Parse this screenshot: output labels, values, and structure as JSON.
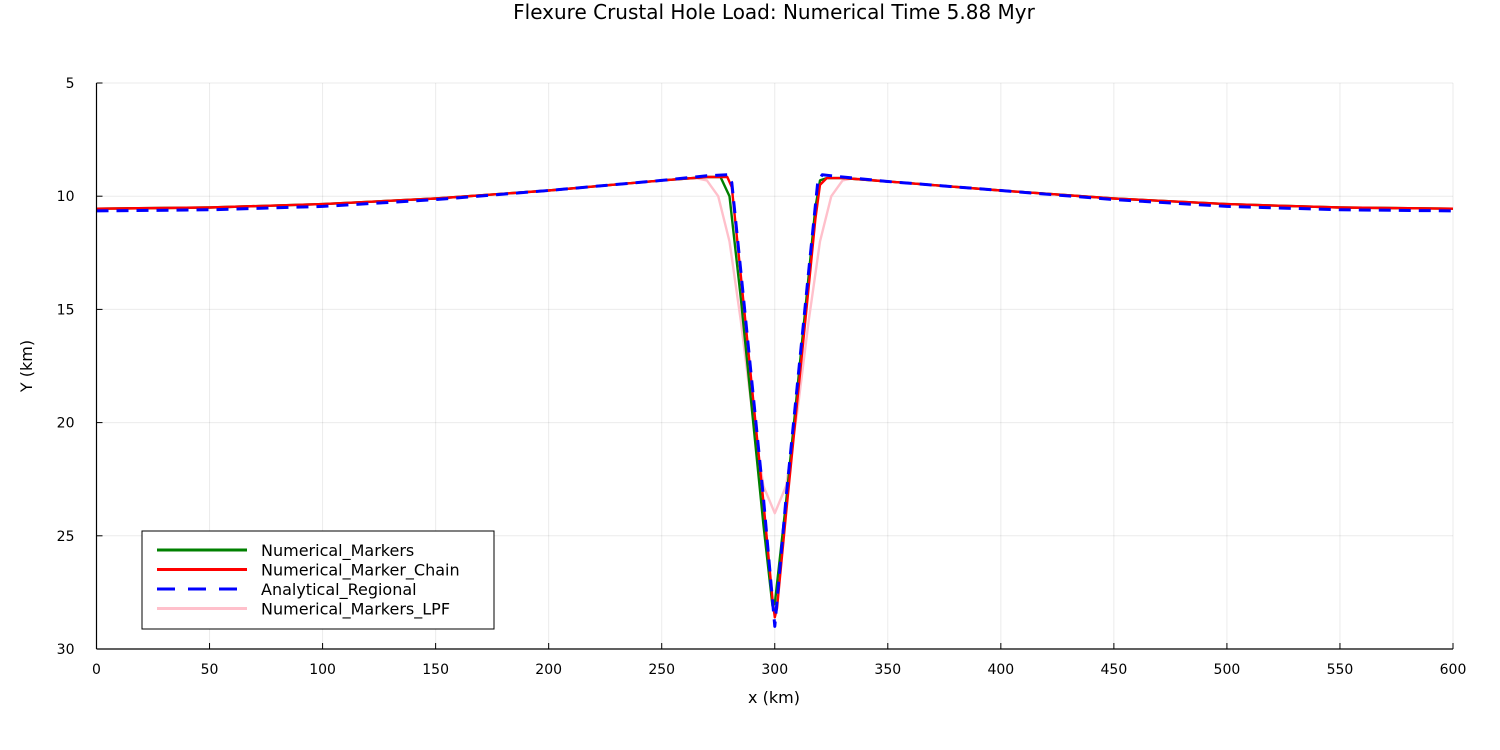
{
  "chart_data": {
    "type": "line",
    "title": "Flexure Crustal Hole Load: Numerical Time 5.88 Myr",
    "xlabel": "x (km)",
    "ylabel": "Y (km)",
    "xlim": [
      0,
      600
    ],
    "ylim": [
      5,
      30
    ],
    "y_inverted": true,
    "xticks": [
      0,
      50,
      100,
      150,
      200,
      250,
      300,
      350,
      400,
      450,
      500,
      550,
      600
    ],
    "yticks": [
      5,
      10,
      15,
      20,
      25,
      30
    ],
    "grid": true,
    "legend_position": "bottom-left",
    "series": [
      {
        "name": "Numerical_Markers",
        "color": "#008000",
        "style": "solid",
        "x": [
          0,
          50,
          100,
          150,
          200,
          250,
          270,
          276,
          280,
          285,
          290,
          295,
          299,
          300,
          305,
          310,
          315,
          318,
          320,
          323,
          330,
          350,
          400,
          450,
          500,
          550,
          600
        ],
        "y": [
          10.55,
          10.5,
          10.35,
          10.1,
          9.75,
          9.3,
          9.15,
          9.15,
          10.0,
          14.5,
          19.5,
          24.5,
          28.1,
          28.0,
          23.5,
          18.5,
          13.5,
          10.5,
          9.3,
          9.2,
          9.2,
          9.35,
          9.75,
          10.1,
          10.35,
          10.5,
          10.55
        ]
      },
      {
        "name": "Numerical_Marker_Chain",
        "color": "#ff0000",
        "style": "solid",
        "x": [
          0,
          50,
          100,
          150,
          200,
          250,
          270,
          279,
          281,
          285,
          290,
          295,
          299,
          300,
          301,
          305,
          310,
          315,
          318,
          320,
          323,
          330,
          350,
          400,
          450,
          500,
          550,
          600
        ],
        "y": [
          10.55,
          10.5,
          10.35,
          10.1,
          9.75,
          9.3,
          9.15,
          9.15,
          9.6,
          13.5,
          18.5,
          23.5,
          27.8,
          28.6,
          28.2,
          24.0,
          19.0,
          14.0,
          11.0,
          9.5,
          9.2,
          9.2,
          9.35,
          9.75,
          10.1,
          10.35,
          10.5,
          10.55
        ]
      },
      {
        "name": "Analytical_Regional",
        "color": "#0000ff",
        "style": "dashed",
        "x": [
          0,
          50,
          100,
          150,
          200,
          250,
          270,
          279,
          281,
          285,
          290,
          295,
          300,
          305,
          310,
          315,
          319,
          321,
          330,
          350,
          400,
          450,
          500,
          550,
          600
        ],
        "y": [
          10.65,
          10.6,
          10.45,
          10.15,
          9.75,
          9.3,
          9.1,
          9.05,
          9.4,
          13.3,
          18.3,
          23.3,
          29.0,
          23.3,
          18.3,
          13.3,
          9.4,
          9.05,
          9.15,
          9.35,
          9.75,
          10.15,
          10.45,
          10.6,
          10.65
        ]
      },
      {
        "name": "Numerical_Markers_LPF",
        "color": "#ffc0cb",
        "style": "solid",
        "x": [
          0,
          50,
          100,
          150,
          200,
          250,
          265,
          270,
          275,
          280,
          285,
          290,
          295,
          300,
          305,
          310,
          315,
          320,
          325,
          330,
          335,
          350,
          400,
          450,
          500,
          550,
          600
        ],
        "y": [
          10.55,
          10.5,
          10.35,
          10.1,
          9.75,
          9.3,
          9.2,
          9.3,
          10.0,
          12.0,
          15.5,
          19.5,
          22.8,
          24.0,
          22.8,
          19.5,
          15.5,
          12.0,
          10.0,
          9.3,
          9.2,
          9.35,
          9.75,
          10.1,
          10.35,
          10.5,
          10.55
        ]
      }
    ]
  }
}
